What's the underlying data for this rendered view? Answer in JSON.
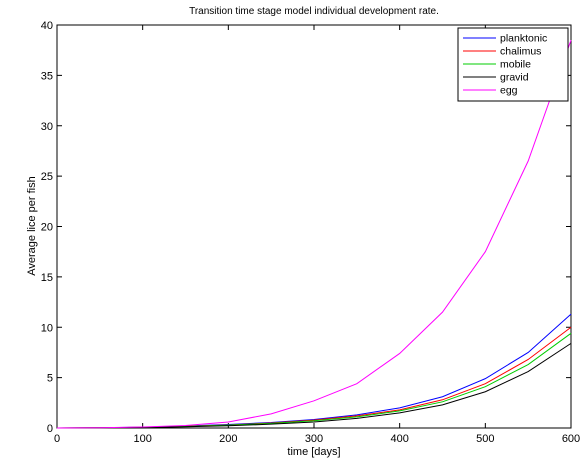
{
  "chart_data": {
    "type": "line",
    "title": "Transition time stage model individual development rate.",
    "xlabel": "time [days]",
    "ylabel": "Average lice per fish",
    "xlim": [
      0,
      600
    ],
    "ylim": [
      0,
      40
    ],
    "xticks": [
      0,
      100,
      200,
      300,
      400,
      500,
      600
    ],
    "yticks": [
      0,
      5,
      10,
      15,
      20,
      25,
      30,
      35,
      40
    ],
    "grid": false,
    "legend_position": "top-right",
    "x": [
      0,
      50,
      100,
      150,
      200,
      250,
      300,
      350,
      400,
      450,
      500,
      550,
      600
    ],
    "series": [
      {
        "name": "planktonic",
        "color": "#0000ff",
        "values": [
          0,
          0.02,
          0.08,
          0.2,
          0.35,
          0.55,
          0.85,
          1.3,
          2.0,
          3.1,
          4.9,
          7.5,
          11.3
        ]
      },
      {
        "name": "chalimus",
        "color": "#ff0000",
        "values": [
          0,
          0.02,
          0.07,
          0.17,
          0.3,
          0.5,
          0.78,
          1.2,
          1.8,
          2.8,
          4.4,
          6.8,
          10.0
        ]
      },
      {
        "name": "mobile",
        "color": "#00cc00",
        "values": [
          0,
          0.02,
          0.06,
          0.15,
          0.28,
          0.46,
          0.72,
          1.1,
          1.7,
          2.6,
          4.1,
          6.3,
          9.4
        ]
      },
      {
        "name": "gravid",
        "color": "#000000",
        "values": [
          0,
          0.01,
          0.05,
          0.12,
          0.22,
          0.38,
          0.6,
          0.95,
          1.5,
          2.3,
          3.6,
          5.6,
          8.4
        ]
      },
      {
        "name": "egg",
        "color": "#ff00ff",
        "values": [
          0,
          0.03,
          0.1,
          0.25,
          0.6,
          1.4,
          2.7,
          4.4,
          7.4,
          11.5,
          17.5,
          26.5,
          38.5
        ]
      }
    ]
  }
}
